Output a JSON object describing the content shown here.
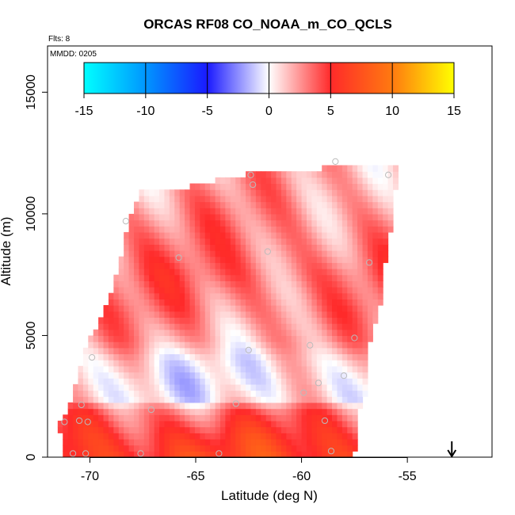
{
  "chart_data": {
    "type": "heatmap",
    "title": "ORCAS RF08 CO_NOAA_m_CO_QCLS",
    "flights_label": "Flts: 8",
    "date_label": "MMDD: 0205",
    "xlabel": "Latitude (deg N)",
    "ylabel": "Altitude (m)",
    "xlim": [
      -72.0,
      -51.0
    ],
    "ylim": [
      0,
      16900
    ],
    "x_ticks": [
      -70,
      -65,
      -60,
      -55
    ],
    "x_tick_labels": [
      "-70",
      "-65",
      "-60",
      "-55"
    ],
    "y_ticks": [
      0,
      5000,
      10000,
      15000
    ],
    "y_tick_labels": [
      "0",
      "5000",
      "10000",
      "15000"
    ],
    "colorbar": {
      "range": [
        -15,
        15
      ],
      "ticks": [
        -15,
        -10,
        -5,
        0,
        5,
        10,
        15
      ],
      "tick_labels": [
        "-15",
        "-10",
        "-5",
        "0",
        "5",
        "10",
        "15"
      ],
      "stops": [
        {
          "value": -15,
          "color": "#00ffff"
        },
        {
          "value": -10,
          "color": "#0096ff"
        },
        {
          "value": -5,
          "color": "#1a1aff"
        },
        {
          "value": 0,
          "color": "#ffffff"
        },
        {
          "value": 5,
          "color": "#ff2a2a"
        },
        {
          "value": 10,
          "color": "#ff7a10"
        },
        {
          "value": 15,
          "color": "#ffff00"
        }
      ]
    },
    "field_boundary": [
      [
        -71.3,
        0
      ],
      [
        -57.5,
        0
      ],
      [
        -57.4,
        1500
      ],
      [
        -57.0,
        2600
      ],
      [
        -56.8,
        4500
      ],
      [
        -56.2,
        6500
      ],
      [
        -56.0,
        8500
      ],
      [
        -55.6,
        10200
      ],
      [
        -55.5,
        11900
      ],
      [
        -57.4,
        12000
      ],
      [
        -63.0,
        11600
      ],
      [
        -66.0,
        11000
      ],
      [
        -67.6,
        11000
      ],
      [
        -68.1,
        10000
      ],
      [
        -68.6,
        8000
      ],
      [
        -69.3,
        6000
      ],
      [
        -70.2,
        4500
      ],
      [
        -70.7,
        3000
      ],
      [
        -71.0,
        2000
      ],
      [
        -71.5,
        1400
      ],
      [
        -71.3,
        500
      ]
    ],
    "altitude_profile": [
      {
        "altitude": 0,
        "value": 6.5
      },
      {
        "altitude": 800,
        "value": 5.5
      },
      {
        "altitude": 1600,
        "value": 4.0
      },
      {
        "altitude": 2000,
        "value": 3.0
      },
      {
        "altitude": 2400,
        "value": 0.3
      },
      {
        "altitude": 3200,
        "value": 0.0
      },
      {
        "altitude": 4000,
        "value": 0.5
      },
      {
        "altitude": 4800,
        "value": 2.0
      },
      {
        "altitude": 6000,
        "value": 3.0
      },
      {
        "altitude": 7500,
        "value": 3.5
      },
      {
        "altitude": 9000,
        "value": 3.0
      },
      {
        "altitude": 10500,
        "value": 2.5
      },
      {
        "altitude": 12000,
        "value": 2.0
      }
    ],
    "observations": [
      {
        "lat": -71.2,
        "alt": 1450
      },
      {
        "lat": -70.8,
        "alt": 150
      },
      {
        "lat": -70.5,
        "alt": 1500
      },
      {
        "lat": -70.4,
        "alt": 2150
      },
      {
        "lat": -70.2,
        "alt": 150
      },
      {
        "lat": -70.1,
        "alt": 1450
      },
      {
        "lat": -69.9,
        "alt": 4100
      },
      {
        "lat": -68.3,
        "alt": 9700
      },
      {
        "lat": -67.6,
        "alt": 150
      },
      {
        "lat": -67.1,
        "alt": 1950
      },
      {
        "lat": -65.8,
        "alt": 8200
      },
      {
        "lat": -63.9,
        "alt": 150
      },
      {
        "lat": -63.1,
        "alt": 2200
      },
      {
        "lat": -62.5,
        "alt": 4400
      },
      {
        "lat": -62.4,
        "alt": 11600
      },
      {
        "lat": -62.3,
        "alt": 11200
      },
      {
        "lat": -61.6,
        "alt": 8450
      },
      {
        "lat": -59.9,
        "alt": 2650
      },
      {
        "lat": -59.6,
        "alt": 4600
      },
      {
        "lat": -59.2,
        "alt": 3050
      },
      {
        "lat": -58.9,
        "alt": 1500
      },
      {
        "lat": -58.6,
        "alt": 250
      },
      {
        "lat": -58.4,
        "alt": 12150
      },
      {
        "lat": -58.0,
        "alt": 3350
      },
      {
        "lat": -57.5,
        "alt": 4900
      },
      {
        "lat": -56.8,
        "alt": 8000
      },
      {
        "lat": -55.9,
        "alt": 11600
      }
    ],
    "flight_direction": "down",
    "flight_arrow": {
      "lat": -52.9,
      "alt_top": 650,
      "alt_bottom": 0
    }
  }
}
